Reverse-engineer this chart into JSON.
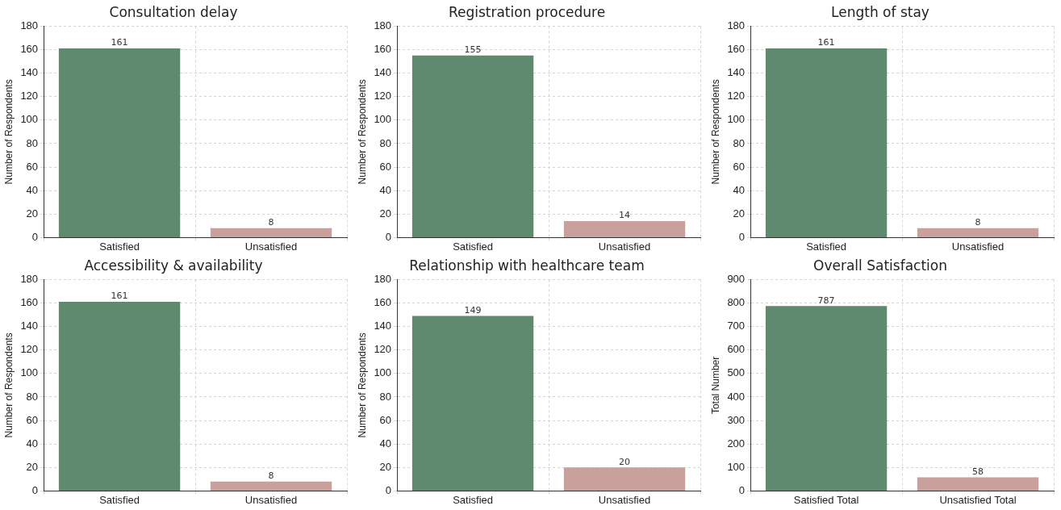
{
  "chart_data": [
    {
      "type": "bar",
      "title": "Consultation delay",
      "ylabel": "Number of Respondents",
      "categories": [
        "Satisfied",
        "Unsatisfied"
      ],
      "values": [
        161,
        8
      ],
      "colors": [
        "#5f8a70",
        "#c9a09c"
      ],
      "ylim": [
        0,
        180
      ],
      "yticks": [
        0,
        20,
        40,
        60,
        80,
        100,
        120,
        140,
        160,
        180
      ],
      "grid": true,
      "data_labels": true
    },
    {
      "type": "bar",
      "title": "Registration procedure",
      "ylabel": "Number of Respondents",
      "categories": [
        "Satisfied",
        "Unsatisfied"
      ],
      "values": [
        155,
        14
      ],
      "colors": [
        "#5f8a70",
        "#c9a09c"
      ],
      "ylim": [
        0,
        180
      ],
      "yticks": [
        0,
        20,
        40,
        60,
        80,
        100,
        120,
        140,
        160,
        180
      ],
      "grid": true,
      "data_labels": true
    },
    {
      "type": "bar",
      "title": "Length of stay",
      "ylabel": "Number of Respondents",
      "categories": [
        "Satisfied",
        "Unsatisfied"
      ],
      "values": [
        161,
        8
      ],
      "colors": [
        "#5f8a70",
        "#c9a09c"
      ],
      "ylim": [
        0,
        180
      ],
      "yticks": [
        0,
        20,
        40,
        60,
        80,
        100,
        120,
        140,
        160,
        180
      ],
      "grid": true,
      "data_labels": true
    },
    {
      "type": "bar",
      "title": "Accessibility & availability",
      "ylabel": "Number of Respondents",
      "categories": [
        "Satisfied",
        "Unsatisfied"
      ],
      "values": [
        161,
        8
      ],
      "colors": [
        "#5f8a70",
        "#c9a09c"
      ],
      "ylim": [
        0,
        180
      ],
      "yticks": [
        0,
        20,
        40,
        60,
        80,
        100,
        120,
        140,
        160,
        180
      ],
      "grid": true,
      "data_labels": true
    },
    {
      "type": "bar",
      "title": "Relationship with healthcare team",
      "ylabel": "Number of Respondents",
      "categories": [
        "Satisfied",
        "Unsatisfied"
      ],
      "values": [
        149,
        20
      ],
      "colors": [
        "#5f8a70",
        "#c9a09c"
      ],
      "ylim": [
        0,
        180
      ],
      "yticks": [
        0,
        20,
        40,
        60,
        80,
        100,
        120,
        140,
        160,
        180
      ],
      "grid": true,
      "data_labels": true
    },
    {
      "type": "bar",
      "title": "Overall Satisfaction",
      "ylabel": "Total Number",
      "categories": [
        "Satisfied Total",
        "Unsatisfied Total"
      ],
      "values": [
        787,
        58
      ],
      "colors": [
        "#5f8a70",
        "#c9a09c"
      ],
      "ylim": [
        0,
        900
      ],
      "yticks": [
        0,
        100,
        200,
        300,
        400,
        500,
        600,
        700,
        800,
        900
      ],
      "grid": true,
      "data_labels": true
    }
  ]
}
